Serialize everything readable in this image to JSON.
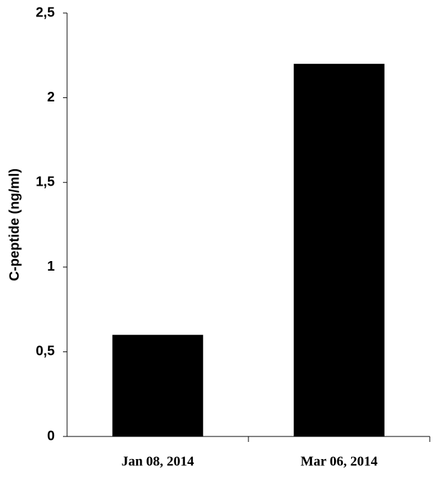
{
  "chart_data": {
    "type": "bar",
    "y_label": "C-peptide (ng/ml)",
    "categories": [
      "Jan 08, 2014",
      "Mar 06, 2014"
    ],
    "values": [
      0.6,
      2.2
    ],
    "color": "#000000",
    "ylim": [
      0,
      2.5
    ],
    "yticks": [
      0,
      {
        "value": 0.5,
        "label": "0,5"
      },
      1,
      {
        "value": 1.5,
        "label": "1,5"
      },
      2,
      {
        "value": 2.5,
        "label": "2,5"
      }
    ],
    "grid": false
  }
}
